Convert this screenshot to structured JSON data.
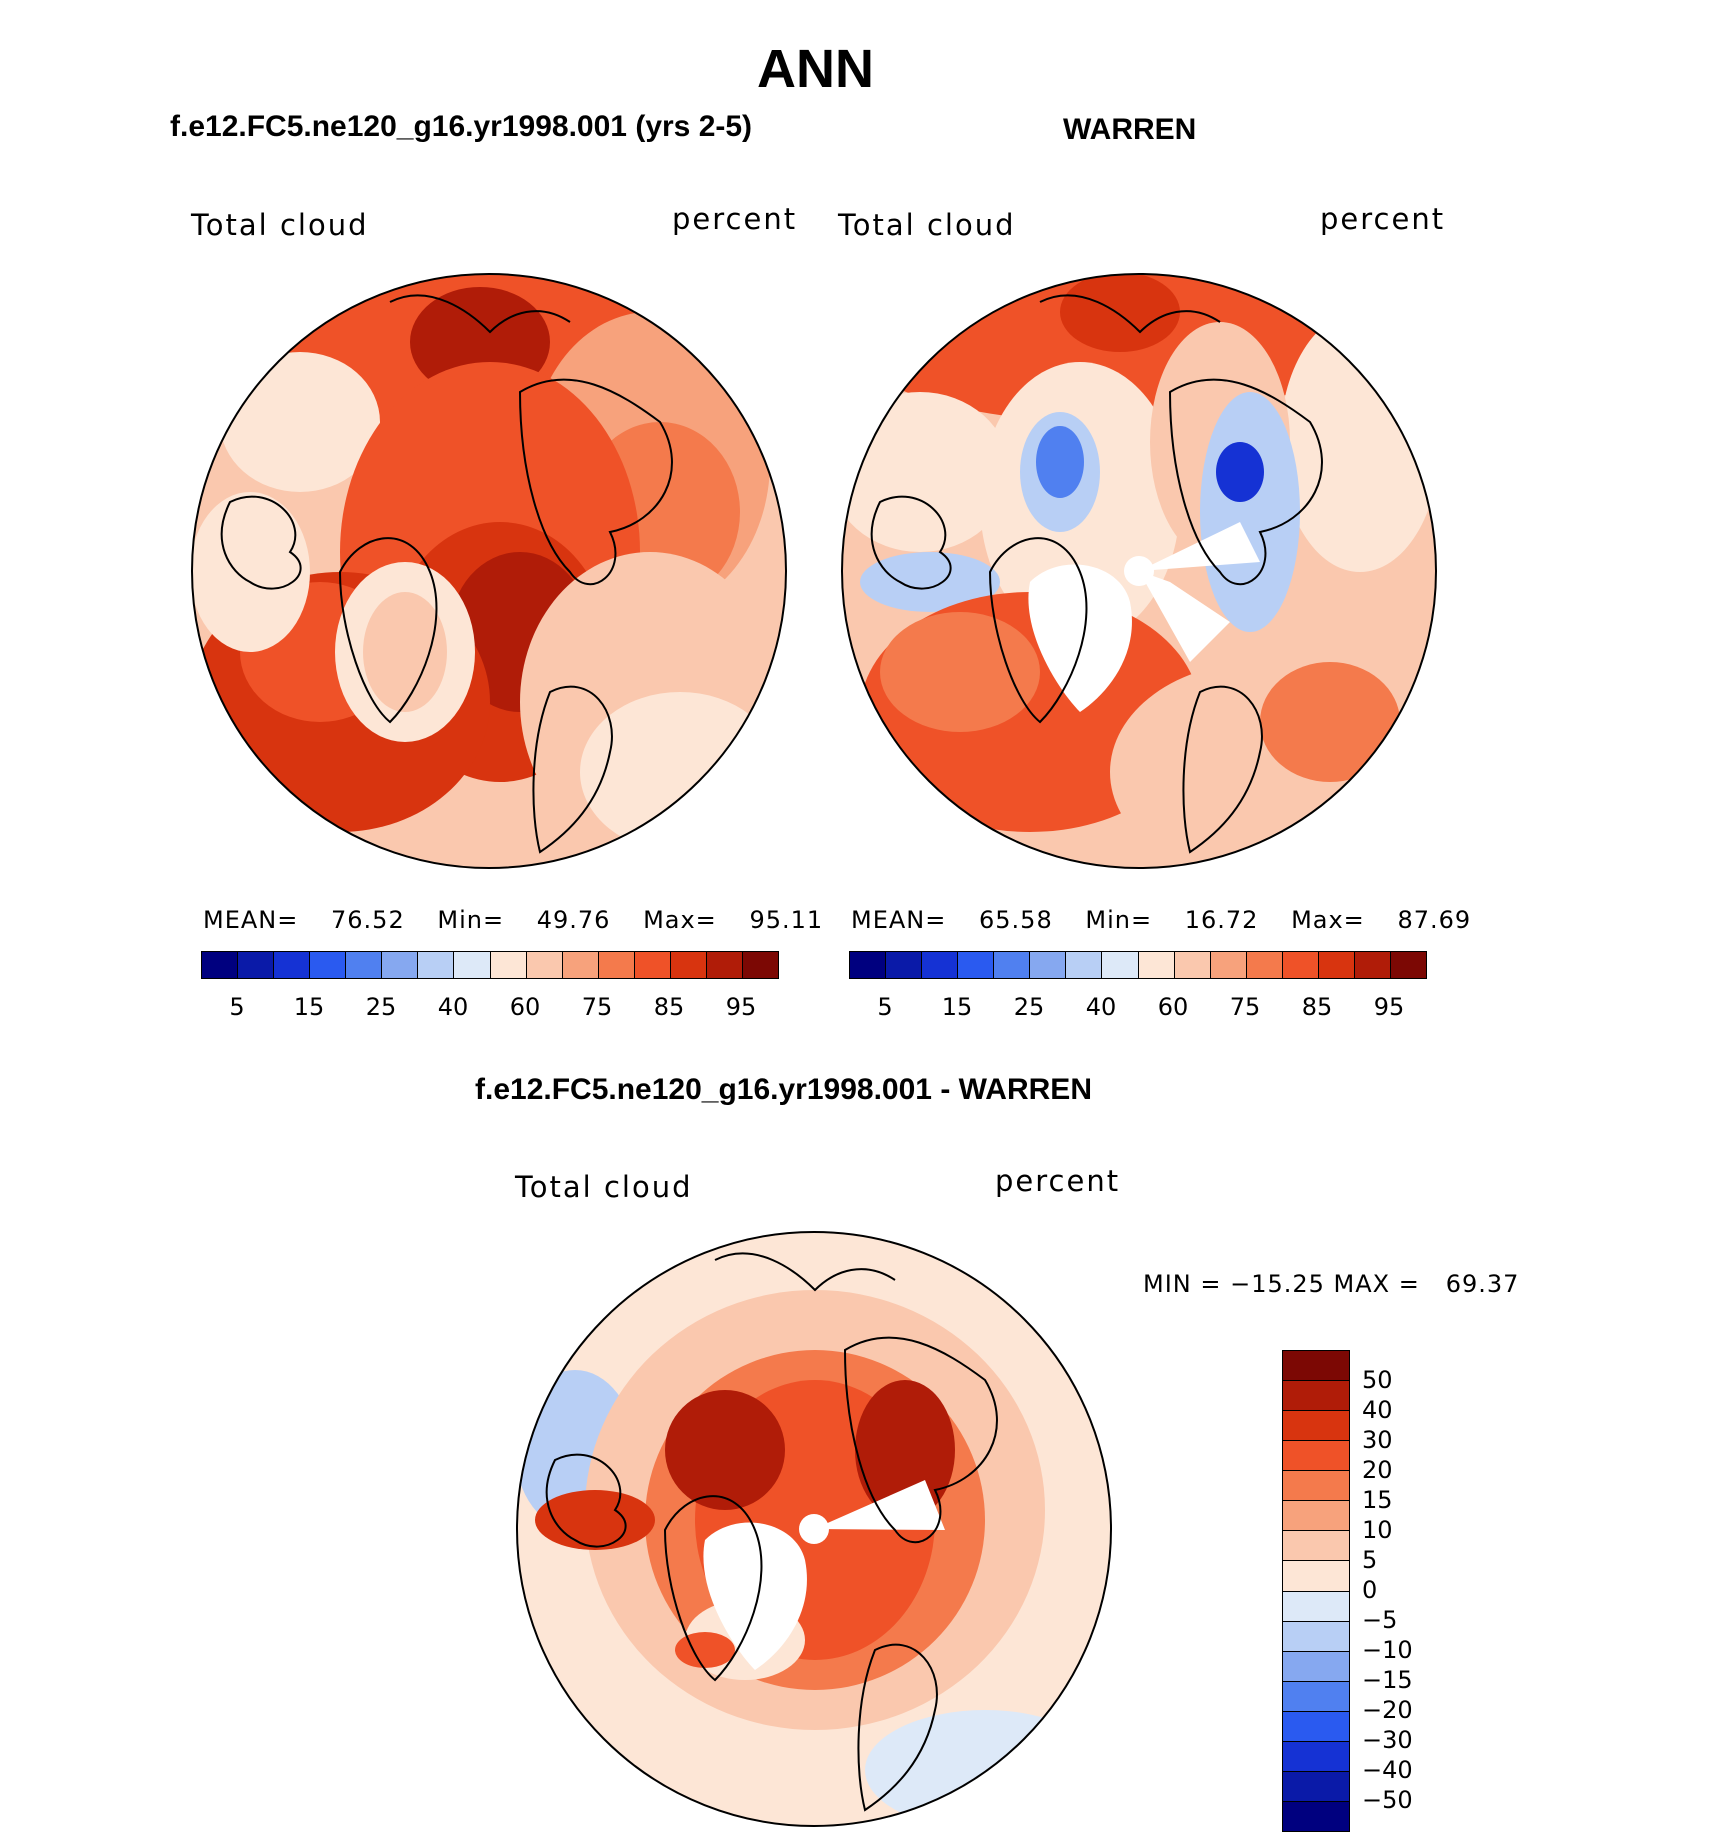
{
  "title": "ANN",
  "panels": [
    {
      "heading": "f.e12.FC5.ne120_g16.yr1998.001 (yrs 2-5)",
      "variable": "Total cloud",
      "units": "percent",
      "stats": {
        "mean_label": "MEAN=",
        "mean": "76.52",
        "min_label": "Min=",
        "min": "49.76",
        "max_label": "Max=",
        "max": "95.11"
      },
      "colorbar_ticks": [
        "5",
        "15",
        "25",
        "40",
        "60",
        "75",
        "85",
        "95"
      ]
    },
    {
      "heading": "WARREN",
      "variable": "Total cloud",
      "units": "percent",
      "stats": {
        "mean_label": "MEAN=",
        "mean": "65.58",
        "min_label": "Min=",
        "min": "16.72",
        "max_label": "Max=",
        "max": "87.69"
      },
      "colorbar_ticks": [
        "5",
        "15",
        "25",
        "40",
        "60",
        "75",
        "85",
        "95"
      ]
    }
  ],
  "diff_panel": {
    "heading": "f.e12.FC5.ne120_g16.yr1998.001 - WARREN",
    "variable": "Total cloud",
    "units": "percent",
    "minmax": "MIN = −15.25 MAX =   69.37",
    "colorbar_ticks": [
      "50",
      "40",
      "30",
      "20",
      "15",
      "10",
      "5",
      "0",
      "−5",
      "−10",
      "−15",
      "−20",
      "−30",
      "−40",
      "−50"
    ]
  },
  "colors": {
    "field_scale": [
      "#00007f",
      "#0a1aa8",
      "#1532d4",
      "#2a5af0",
      "#5080f0",
      "#86a8f0",
      "#b8cff5",
      "#dde9f8",
      "#fde6d6",
      "#fac8ae",
      "#f7a27c",
      "#f47a4c",
      "#ef5228",
      "#d8340f",
      "#b01c08",
      "#7c0804"
    ],
    "diff_scale": [
      "#7c0804",
      "#b01c08",
      "#d8340f",
      "#ef5228",
      "#f47a4c",
      "#f7a27c",
      "#fac8ae",
      "#fde6d6",
      "#dde9f8",
      "#b8cff5",
      "#86a8f0",
      "#5080f0",
      "#2a5af0",
      "#1532d4",
      "#0a1aa8",
      "#00007f"
    ]
  }
}
